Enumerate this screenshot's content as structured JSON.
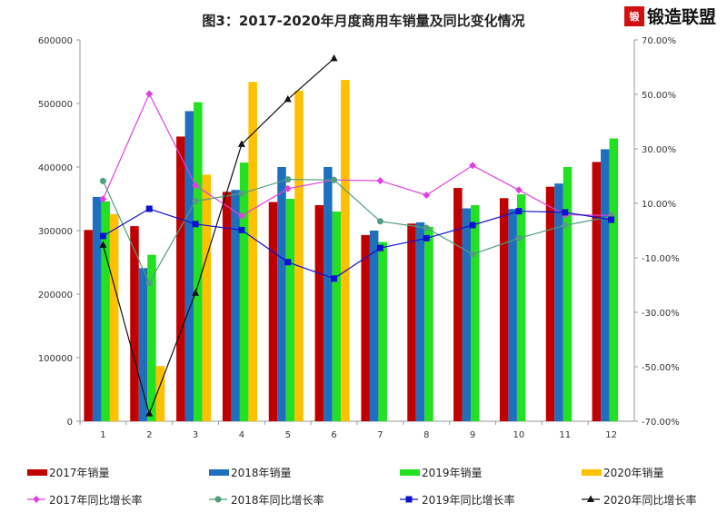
{
  "chart_data": {
    "type": "bar",
    "title": "图3：2017-2020年月度商用车销量及同比变化情况",
    "categories": [
      "1",
      "2",
      "3",
      "4",
      "5",
      "6",
      "7",
      "8",
      "9",
      "10",
      "11",
      "12"
    ],
    "ylim": [
      0,
      600000
    ],
    "yticks": [
      "0",
      "100000",
      "200000",
      "300000",
      "400000",
      "500000",
      "600000"
    ],
    "y2lim": [
      -70,
      70
    ],
    "y2ticks": [
      "-70.00%",
      "-50.00%",
      "-30.00%",
      "-10.00%",
      "10.00%",
      "30.00%",
      "50.00%",
      "70.00%"
    ],
    "grid": false,
    "legend_position": "bottom",
    "bar_series": [
      {
        "name": "2017年销量",
        "color": "#c00000",
        "values": [
          301000,
          307000,
          448000,
          361000,
          345000,
          340000,
          293000,
          311000,
          367000,
          351000,
          369000,
          408000
        ]
      },
      {
        "name": "2018年销量",
        "color": "#1f6fbf",
        "values": [
          353000,
          241000,
          488000,
          364000,
          400000,
          400000,
          300000,
          313000,
          335000,
          334000,
          374000,
          428000
        ]
      },
      {
        "name": "2019年销量",
        "color": "#22e022",
        "values": [
          346000,
          262000,
          502000,
          407000,
          350000,
          330000,
          282000,
          306000,
          340000,
          357000,
          400000,
          445000
        ]
      },
      {
        "name": "2020年销量",
        "color": "#ffc000",
        "values": [
          326000,
          87000,
          388000,
          534000,
          520000,
          537000,
          null,
          null,
          null,
          null,
          null,
          null
        ]
      }
    ],
    "line_series": [
      {
        "name": "2017年同比增长率",
        "color": "#e040e0",
        "marker": "diamond",
        "values": [
          11.6,
          50.2,
          16.6,
          5.4,
          15.4,
          18.6,
          18.3,
          13.0,
          23.9,
          14.9,
          5.8,
          5.6
        ]
      },
      {
        "name": "2018年同比增长率",
        "color": "#4f9f7f",
        "marker": "circle",
        "values": [
          18.2,
          -19.2,
          10.8,
          13.6,
          18.8,
          18.6,
          3.4,
          1.0,
          -8.7,
          -2.8,
          1.9,
          5.2
        ]
      },
      {
        "name": "2019年同比增长率",
        "color": "#1010d0",
        "marker": "square",
        "values": [
          -2.0,
          8.0,
          2.4,
          0.2,
          -11.6,
          -17.6,
          -6.4,
          -2.8,
          2.0,
          7.1,
          6.7,
          4.0
        ]
      },
      {
        "name": "2020年同比增长率",
        "color": "#111111",
        "marker": "triangle",
        "values": [
          -5.3,
          -67.2,
          -22.9,
          31.7,
          48.2,
          63.2,
          null,
          null,
          null,
          null,
          null,
          null
        ]
      }
    ]
  },
  "watermark": {
    "text": "锻造联盟",
    "logo": "锻"
  }
}
